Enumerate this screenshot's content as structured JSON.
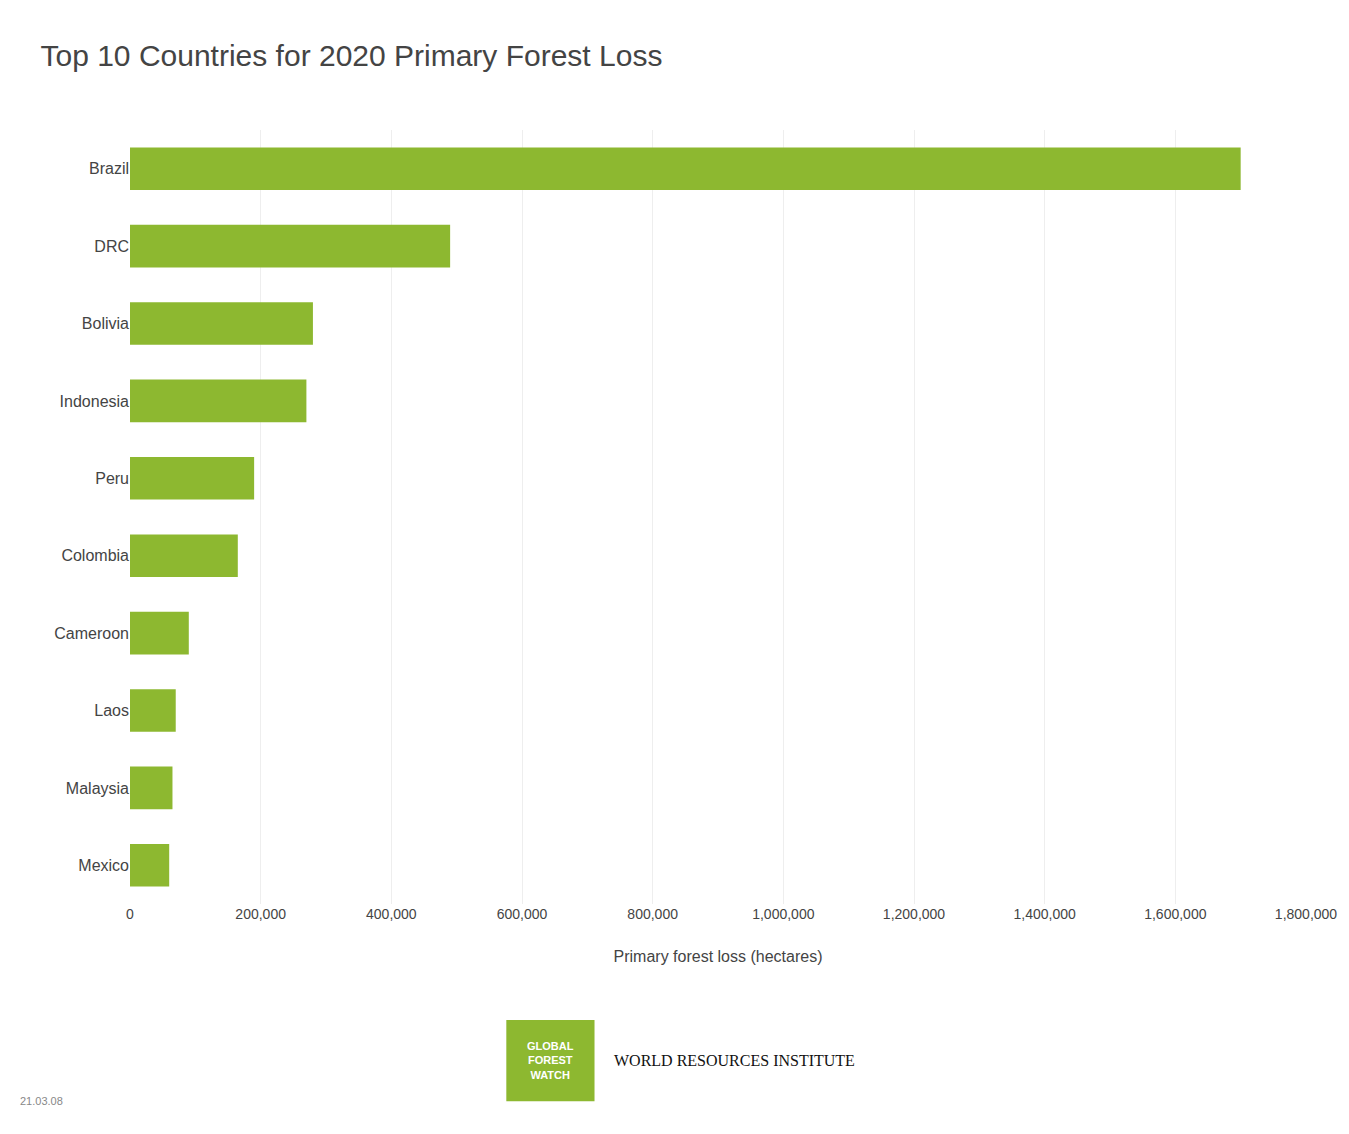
{
  "chart_data": {
    "type": "bar",
    "orientation": "horizontal",
    "title": "Top 10 Countries for 2020 Primary Forest Loss",
    "categories": [
      "Brazil",
      "DRC",
      "Bolivia",
      "Indonesia",
      "Peru",
      "Colombia",
      "Cameroon",
      "Laos",
      "Malaysia",
      "Mexico"
    ],
    "values": [
      1700000,
      490000,
      280000,
      270000,
      190000,
      165000,
      90000,
      70000,
      65000,
      60000
    ],
    "color": "#8db830",
    "xlabel": "Primary forest loss (hectares)",
    "xlim": [
      0,
      1800000
    ],
    "xticks": [
      0,
      {
        "value": 200000,
        "label": "200,000"
      },
      {
        "value": 400000,
        "label": "400,000"
      },
      {
        "value": 600000,
        "label": "600,000"
      },
      {
        "value": 800000,
        "label": "800,000"
      },
      {
        "value": 1000000,
        "label": "1,000,000"
      },
      {
        "value": 1200000,
        "label": "1,200,000"
      },
      {
        "value": 1400000,
        "label": "1,400,000"
      },
      {
        "value": 1600000,
        "label": "1,600,000"
      },
      {
        "value": 1800000,
        "label": "1,800,000"
      }
    ],
    "grid": true,
    "annotations": [
      "21.03.08",
      "GLOBAL\nFOREST\nWATCH",
      "WORLD RESOURCES INSTITUTE"
    ]
  }
}
